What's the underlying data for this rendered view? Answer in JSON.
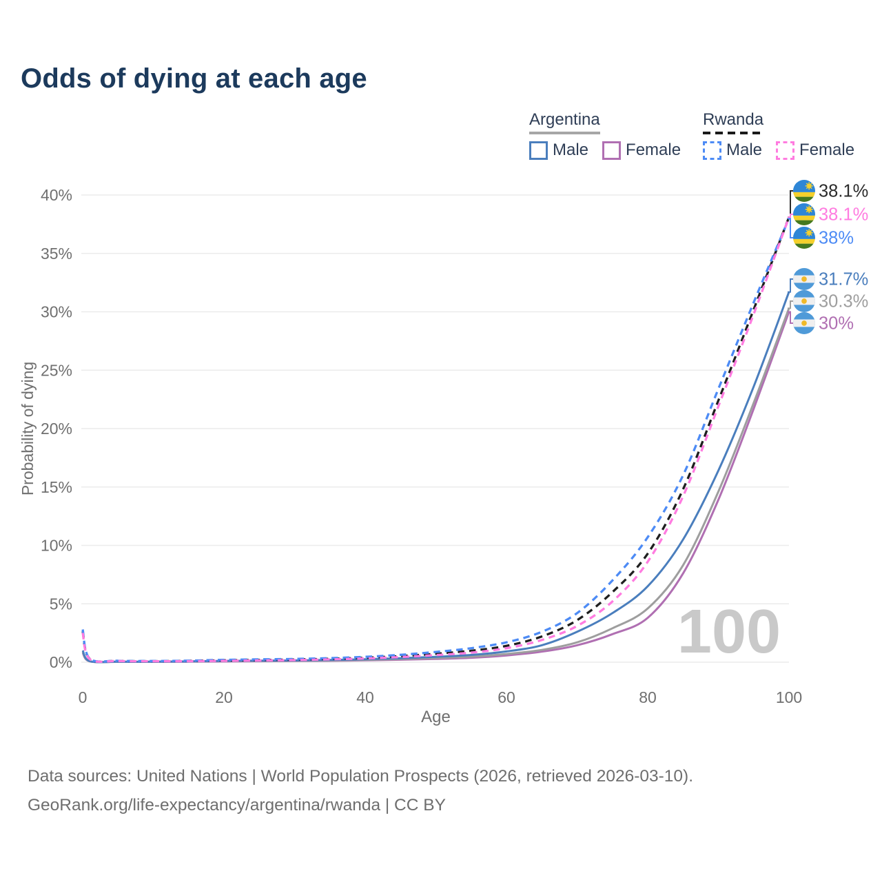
{
  "title": "Odds of dying at each age",
  "legend": {
    "groups": [
      {
        "name": "Argentina",
        "line_style": "solid",
        "underline_color": "#a6a6a6",
        "items": [
          {
            "label": "Male",
            "color": "#4a7ebd",
            "dashed": false
          },
          {
            "label": "Female",
            "color": "#b06fb2",
            "dashed": false
          }
        ]
      },
      {
        "name": "Rwanda",
        "line_style": "dashed",
        "underline_color": "#1a1a1a",
        "items": [
          {
            "label": "Male",
            "color": "#4d8bf5",
            "dashed": true
          },
          {
            "label": "Female",
            "color": "#ff7ce0",
            "dashed": true
          }
        ]
      }
    ]
  },
  "chart_data": {
    "type": "line",
    "title": "Odds of dying at each age",
    "xlabel": "Age",
    "ylabel": "Probability of dying",
    "xlim": [
      0,
      100
    ],
    "ylim": [
      0,
      40
    ],
    "x_ticks": [
      0,
      20,
      40,
      60,
      80,
      100
    ],
    "y_ticks": [
      "0%",
      "5%",
      "10%",
      "15%",
      "20%",
      "25%",
      "30%",
      "35%",
      "40%"
    ],
    "grid": "horizontal",
    "legend_position": "top-right",
    "watermark": "100",
    "x": [
      0,
      1,
      5,
      10,
      15,
      20,
      25,
      30,
      35,
      40,
      45,
      50,
      55,
      60,
      65,
      70,
      75,
      80,
      85,
      90,
      95,
      100
    ],
    "series": [
      {
        "name": "Argentina Female",
        "country": "Argentina",
        "sex": "Female",
        "color": "#b06fb2",
        "dashed": false,
        "flag": "argentina",
        "end_label": "30%",
        "values": [
          0.8,
          0.07,
          0.03,
          0.03,
          0.04,
          0.06,
          0.08,
          0.1,
          0.12,
          0.16,
          0.21,
          0.28,
          0.38,
          0.58,
          0.9,
          1.45,
          2.4,
          3.8,
          7.6,
          13.9,
          21.7,
          30.0
        ]
      },
      {
        "name": "Argentina Both sexes",
        "country": "Argentina",
        "sex": "Both",
        "color": "#9e9e9e",
        "dashed": false,
        "flag": "argentina",
        "end_label": "30.3%",
        "values": [
          0.9,
          0.08,
          0.04,
          0.04,
          0.06,
          0.09,
          0.1,
          0.12,
          0.15,
          0.2,
          0.27,
          0.36,
          0.47,
          0.7,
          1.05,
          1.7,
          2.9,
          4.6,
          8.3,
          14.6,
          22.2,
          30.3
        ]
      },
      {
        "name": "Argentina Male",
        "country": "Argentina",
        "sex": "Male",
        "color": "#4a7ebd",
        "dashed": false,
        "flag": "argentina",
        "end_label": "31.7%",
        "values": [
          1.0,
          0.09,
          0.04,
          0.04,
          0.07,
          0.11,
          0.13,
          0.15,
          0.19,
          0.25,
          0.34,
          0.46,
          0.62,
          0.92,
          1.45,
          2.6,
          4.2,
          6.5,
          10.5,
          16.4,
          23.6,
          31.7
        ]
      },
      {
        "name": "Rwanda Both sexes",
        "country": "Rwanda",
        "sex": "Both",
        "color": "#1f1f1f",
        "dashed": true,
        "flag": "rwanda",
        "end_label": "38.1%",
        "values": [
          2.65,
          0.28,
          0.11,
          0.09,
          0.11,
          0.16,
          0.19,
          0.23,
          0.29,
          0.38,
          0.52,
          0.72,
          0.98,
          1.4,
          2.2,
          3.6,
          6.0,
          9.3,
          14.8,
          22.4,
          30.2,
          38.1
        ]
      },
      {
        "name": "Rwanda Male",
        "country": "Rwanda",
        "sex": "Male",
        "color": "#4d8bf5",
        "dashed": true,
        "flag": "rwanda",
        "end_label": "38%",
        "values": [
          2.8,
          0.3,
          0.12,
          0.1,
          0.13,
          0.2,
          0.24,
          0.28,
          0.35,
          0.46,
          0.63,
          0.88,
          1.2,
          1.7,
          2.6,
          4.2,
          7.0,
          10.7,
          16.0,
          23.4,
          30.8,
          38.0
        ]
      },
      {
        "name": "Rwanda Female",
        "country": "Rwanda",
        "sex": "Female",
        "color": "#ff7ce0",
        "dashed": true,
        "flag": "rwanda",
        "end_label": "38.1%",
        "values": [
          2.5,
          0.26,
          0.1,
          0.08,
          0.09,
          0.12,
          0.15,
          0.18,
          0.24,
          0.32,
          0.44,
          0.61,
          0.82,
          1.2,
          1.9,
          3.1,
          5.2,
          8.6,
          14.2,
          21.9,
          29.8,
          38.1
        ]
      }
    ],
    "colors": {
      "grid": "#ebebeb",
      "tick_text": "#6f6f6f",
      "watermark": "#c9c9c9",
      "flag_rwanda": {
        "blue": "#2e86d6",
        "yellow": "#f5d02c",
        "green": "#45791f",
        "sun": "#f5d02c"
      },
      "flag_argentina": {
        "blue": "#4f9ad8",
        "white": "#efefef",
        "sun": "#f0b929"
      }
    }
  },
  "footer": {
    "line1": "Data sources: United Nations | World Population Prospects (2026, retrieved 2026-03-10).",
    "line2": "GeoRank.org/life-expectancy/argentina/rwanda | CC BY"
  }
}
